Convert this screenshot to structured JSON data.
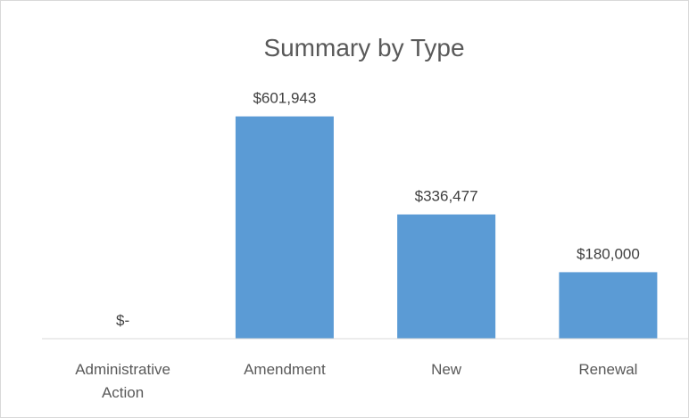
{
  "chart_data": {
    "type": "bar",
    "title": "Summary by Type",
    "categories": [
      [
        "Administrative",
        "Action"
      ],
      [
        "Amendment"
      ],
      [
        "New"
      ],
      [
        "Renewal"
      ]
    ],
    "values": [
      0,
      601943,
      336477,
      180000
    ],
    "data_labels": [
      "$-",
      "$601,943",
      "$336,477",
      "$180,000"
    ],
    "ylim": [
      0,
      700000
    ],
    "grid": false,
    "legend": "none",
    "bar_color": "#5b9bd5",
    "axis_color": "#d9d9d9"
  }
}
